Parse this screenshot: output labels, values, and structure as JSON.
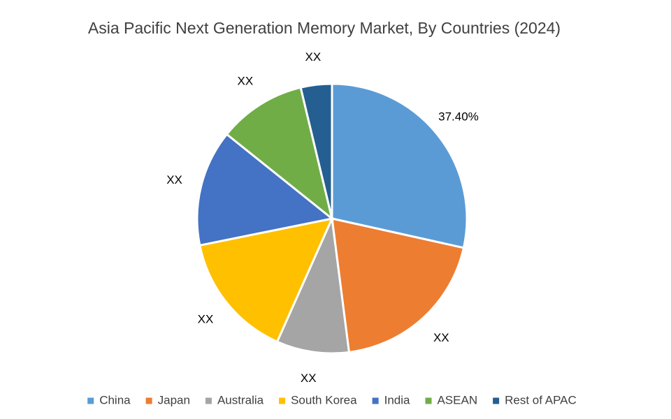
{
  "chart_data": {
    "type": "pie",
    "title": "Asia Pacific Next Generation Memory Market, By Countries (2024)",
    "categories": [
      "China",
      "Japan",
      "Australia",
      "South Korea",
      "India",
      "ASEAN",
      "Rest of APAC"
    ],
    "values": [
      37.4,
      25.6,
      11.4,
      19.9,
      18.3,
      13.8,
      4.9
    ],
    "value_labels": [
      "37.40%",
      "XX",
      "XX",
      "XX",
      "XX",
      "XX",
      "XX"
    ],
    "colors": [
      "#5b9bd5",
      "#ed7d31",
      "#a5a5a5",
      "#ffc000",
      "#4472c4",
      "#70ad47",
      "#255e91"
    ],
    "legend": "bottom"
  }
}
